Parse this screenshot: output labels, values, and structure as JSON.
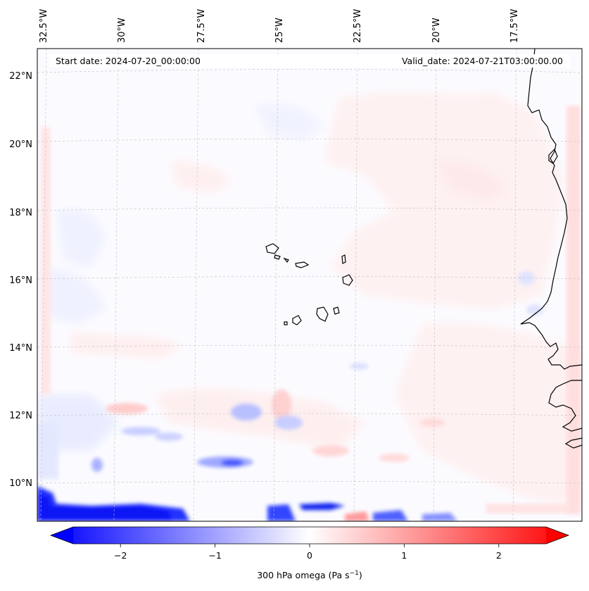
{
  "map": {
    "start_date_label": "Start date: 2024-07-20_00:00:00",
    "valid_date_label": "Valid_date: 2024-07-21T03:00:00.00",
    "lon_ticks": [
      "32.5°W",
      "30°W",
      "27.5°W",
      "25°W",
      "22.5°W",
      "20°W",
      "17.5°W"
    ],
    "lat_ticks": [
      "22°N",
      "20°N",
      "18°N",
      "16°N",
      "14°N",
      "12°N",
      "10°N"
    ],
    "colors": {
      "negative": "#0000ff",
      "neutral": "#ffffff",
      "positive": "#ff0000",
      "coastline": "#000000",
      "gridline": "#bfbfbf"
    }
  },
  "colorbar": {
    "ticks": [
      "−2",
      "−1",
      "0",
      "1",
      "2"
    ],
    "tick_values": [
      -2,
      -1,
      0,
      1,
      2
    ],
    "vmin": -2.5,
    "vmax": 2.5,
    "label_main": "300 hPa omega (Pa s",
    "label_sup": "−1",
    "label_end": ")"
  }
}
